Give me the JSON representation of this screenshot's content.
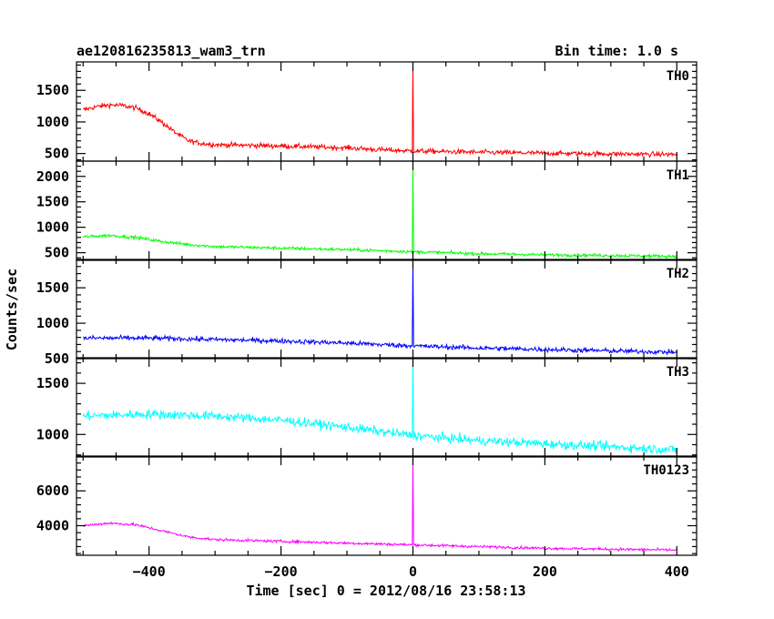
{
  "chart_data": {
    "type": "line",
    "title": "ae120816235813_wam3_trn",
    "subtitle": "Bin time: 1.0 s",
    "xlabel": "Time [sec] 0 = 2012/08/16 23:58:13",
    "ylabel": "Counts/sec",
    "xlim": [
      -510,
      430
    ],
    "x_ticks": [
      -400,
      -200,
      0,
      200,
      400
    ],
    "x_tick_labels": [
      "−400",
      "−200",
      "0",
      "200",
      "400"
    ],
    "grid": false,
    "panels": [
      {
        "name": "TH0",
        "color": "#ff0000",
        "ylim": [
          380,
          1950
        ],
        "y_ticks": [
          500,
          1000,
          1500
        ],
        "y_tick_labels": [
          "500",
          "1000",
          "1500"
        ],
        "noise": 28,
        "spike": {
          "x": 0,
          "peak": 1950
        },
        "profile_x": [
          -500,
          -480,
          -460,
          -440,
          -420,
          -400,
          -380,
          -360,
          -340,
          -320,
          -300,
          -200,
          -100,
          -50,
          0,
          100,
          200,
          300,
          400
        ],
        "profile_y": [
          1190,
          1240,
          1270,
          1260,
          1220,
          1130,
          990,
          830,
          700,
          660,
          640,
          620,
          590,
          560,
          540,
          520,
          505,
          495,
          485
        ]
      },
      {
        "name": "TH1",
        "color": "#00ff00",
        "ylim": [
          350,
          2300
        ],
        "y_ticks": [
          500,
          1000,
          1500,
          2000
        ],
        "y_tick_labels": [
          "500",
          "1000",
          "1500",
          "2000"
        ],
        "noise": 22,
        "spike": {
          "x": 0,
          "peak": 2300
        },
        "profile_x": [
          -500,
          -460,
          -420,
          -380,
          -340,
          -300,
          -200,
          -100,
          0,
          100,
          200,
          300,
          400
        ],
        "profile_y": [
          810,
          840,
          800,
          720,
          660,
          620,
          590,
          560,
          520,
          480,
          460,
          445,
          430
        ]
      },
      {
        "name": "TH2",
        "color": "#0000ff",
        "ylim": [
          500,
          1900
        ],
        "y_ticks": [
          500,
          1000,
          1500
        ],
        "y_tick_labels": [
          "500",
          "1000",
          "1500"
        ],
        "noise": 24,
        "spike": {
          "x": 0,
          "peak": 1900
        },
        "profile_x": [
          -500,
          -400,
          -300,
          -200,
          -100,
          0,
          100,
          200,
          300,
          400
        ],
        "profile_y": [
          790,
          790,
          770,
          750,
          720,
          680,
          650,
          630,
          610,
          590
        ]
      },
      {
        "name": "TH3",
        "color": "#00ffff",
        "ylim": [
          780,
          1750
        ],
        "y_ticks": [
          1000,
          1500
        ],
        "y_tick_labels": [
          "1000",
          "1500"
        ],
        "noise": 32,
        "spike": {
          "x": 0,
          "peak": 1750
        },
        "profile_x": [
          -500,
          -400,
          -300,
          -200,
          -100,
          0,
          100,
          200,
          300,
          400
        ],
        "profile_y": [
          1180,
          1200,
          1180,
          1140,
          1070,
          990,
          940,
          910,
          880,
          850
        ]
      },
      {
        "name": "TH0123",
        "color": "#ff00ff",
        "ylim": [
          2300,
          8000
        ],
        "y_ticks": [
          4000,
          6000
        ],
        "y_tick_labels": [
          "4000",
          "6000"
        ],
        "noise": 55,
        "spike": {
          "x": 0,
          "peak": 8000
        },
        "profile_x": [
          -500,
          -460,
          -420,
          -380,
          -340,
          -300,
          -200,
          -100,
          -50,
          0,
          100,
          200,
          300,
          400
        ],
        "profile_y": [
          4000,
          4150,
          4050,
          3700,
          3350,
          3200,
          3100,
          3000,
          2950,
          2900,
          2800,
          2700,
          2650,
          2600
        ]
      }
    ]
  }
}
